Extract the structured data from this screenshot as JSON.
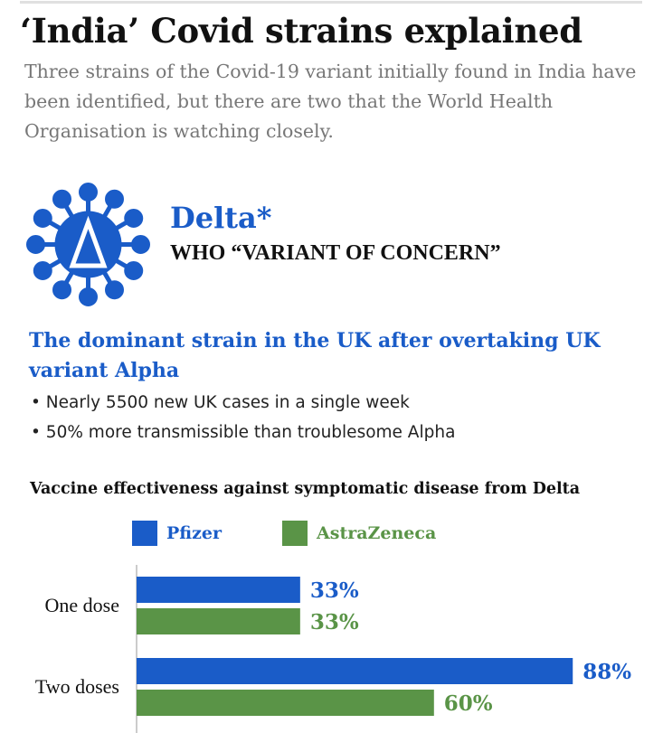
{
  "header": {
    "title": "‘India’ Covid strains explained",
    "subtitle": "Three strains of the Covid-19 variant initially found in India have been identified, but there are two that the World Health Organisation is watching closely."
  },
  "variant": {
    "name": "Delta*",
    "status": "WHO “VARIANT OF CONCERN”",
    "icon": "coronavirus-delta-icon",
    "headline": "The dominant strain in the UK after overtaking UK variant Alpha",
    "bullets": [
      "Nearly 5500 new UK cases in a single week",
      "50% more transmissible than troublesome Alpha"
    ]
  },
  "colors": {
    "blue": "#1a5cc8",
    "green": "#5a9447"
  },
  "chart_data": {
    "type": "bar",
    "orientation": "horizontal",
    "title": "Vaccine effectiveness against symptomatic disease from Delta",
    "categories": [
      "One dose",
      "Two doses"
    ],
    "series": [
      {
        "name": "Pfizer",
        "color": "#1a5cc8",
        "values": [
          33,
          88
        ],
        "labels": [
          "33%",
          "88%"
        ]
      },
      {
        "name": "AstraZeneca",
        "color": "#5a9447",
        "values": [
          33,
          60
        ],
        "labels": [
          "33%",
          "60%"
        ]
      }
    ],
    "xlim": [
      0,
      100
    ],
    "xlabel": "",
    "ylabel": "",
    "legend": "top-left",
    "grid": false
  }
}
